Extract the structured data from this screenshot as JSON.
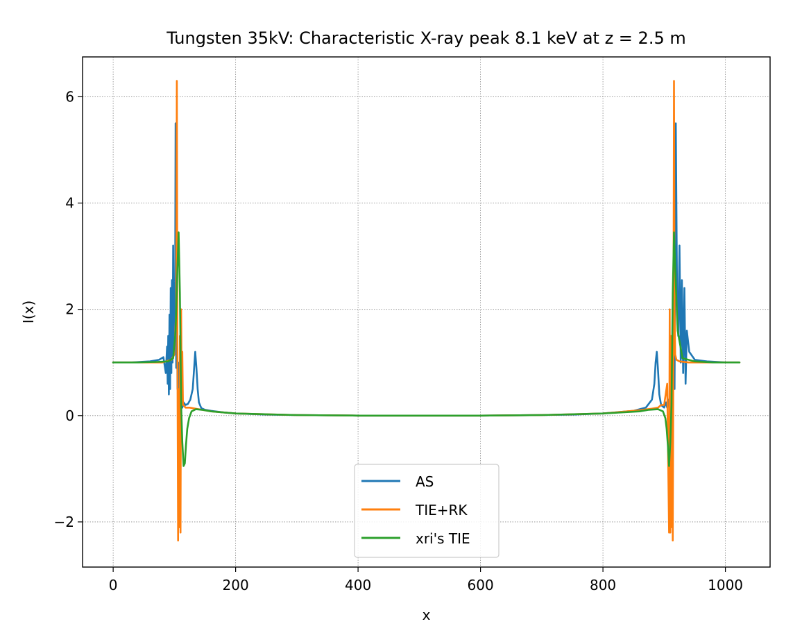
{
  "chart_data": {
    "type": "line",
    "title": "Tungsten 35kV: Characteristic X-ray peak 8.1 keV at z = 2.5 m",
    "xlabel": "x",
    "ylabel": "I(x)",
    "xlim": [
      -50,
      1073
    ],
    "ylim": [
      -2.85,
      6.75
    ],
    "xticks": [
      0,
      200,
      400,
      600,
      800,
      1000
    ],
    "yticks": [
      -2,
      0,
      2,
      4,
      6
    ],
    "xtick_labels": [
      "0",
      "200",
      "400",
      "600",
      "800",
      "1000"
    ],
    "ytick_labels": [
      "−2",
      "0",
      "2",
      "4",
      "6"
    ],
    "grid": true,
    "legend_position": "lower center",
    "series": [
      {
        "name": "AS",
        "color": "#1f77b4",
        "x": [
          0,
          30,
          60,
          75,
          82,
          86,
          88,
          89,
          90,
          91,
          92,
          93,
          94,
          95,
          96,
          97,
          98,
          99,
          100,
          101,
          102,
          103,
          104,
          105,
          106,
          107,
          108,
          109,
          110,
          111,
          112,
          113,
          115,
          118,
          122,
          126,
          130,
          132,
          134,
          136,
          138,
          140,
          144,
          150,
          160,
          180,
          200,
          250,
          300,
          400,
          500,
          600,
          700,
          750,
          800,
          850,
          870,
          880,
          884,
          886,
          888,
          890,
          892,
          895,
          900,
          903,
          905,
          907,
          909,
          911,
          913,
          915,
          917,
          919,
          921,
          923,
          925,
          927,
          929,
          931,
          933,
          935,
          937,
          941,
          950,
          970,
          1000,
          1023
        ],
        "y": [
          1.0,
          1.0,
          1.02,
          1.05,
          1.1,
          0.8,
          1.3,
          0.6,
          1.5,
          0.4,
          1.9,
          0.5,
          2.4,
          0.8,
          2.55,
          1.0,
          3.2,
          1.2,
          2.3,
          1.5,
          5.5,
          0.9,
          3.0,
          0.5,
          1.0,
          0.15,
          0.7,
          0.1,
          0.4,
          0.1,
          0.3,
          0.15,
          0.25,
          0.2,
          0.22,
          0.3,
          0.5,
          0.85,
          1.2,
          0.9,
          0.5,
          0.25,
          0.14,
          0.11,
          0.09,
          0.06,
          0.04,
          0.02,
          0.01,
          0.0,
          0.0,
          0.0,
          0.01,
          0.02,
          0.04,
          0.09,
          0.15,
          0.3,
          0.6,
          1.0,
          1.2,
          0.85,
          0.4,
          0.2,
          0.15,
          0.25,
          0.15,
          0.3,
          0.1,
          0.5,
          0.2,
          1.1,
          0.5,
          5.5,
          2.3,
          1.5,
          3.2,
          1.0,
          2.55,
          0.8,
          2.4,
          0.6,
          1.6,
          1.2,
          1.05,
          1.02,
          1.0,
          1.0
        ]
      },
      {
        "name": "TIE+RK",
        "color": "#ff7f0e",
        "x": [
          0,
          40,
          80,
          95,
          100,
          103,
          104,
          105,
          106,
          107,
          108,
          109,
          110,
          111,
          112,
          113,
          114,
          115,
          118,
          125,
          140,
          160,
          200,
          300,
          400,
          500,
          600,
          700,
          800,
          860,
          880,
          890,
          895,
          900,
          905,
          908,
          909,
          910,
          911,
          912,
          913,
          914,
          915,
          916,
          917,
          918,
          919,
          920,
          925,
          940,
          980,
          1023
        ],
        "y": [
          1.0,
          1.0,
          1.0,
          1.05,
          1.15,
          2.0,
          6.3,
          1.0,
          -2.35,
          0.5,
          -2.1,
          1.5,
          -2.2,
          2.0,
          0.3,
          1.2,
          0.2,
          0.2,
          0.15,
          0.15,
          0.12,
          0.08,
          0.04,
          0.01,
          0.0,
          0.0,
          0.0,
          0.01,
          0.04,
          0.1,
          0.13,
          0.15,
          0.2,
          0.2,
          0.6,
          -2.2,
          2.0,
          -2.2,
          1.5,
          -2.1,
          0.5,
          -2.35,
          1.0,
          6.3,
          2.0,
          1.15,
          1.1,
          1.05,
          1.02,
          1.0,
          1.0,
          1.0
        ]
      },
      {
        "name": "xri's TIE",
        "color": "#2ca02c",
        "x": [
          0,
          40,
          70,
          90,
          98,
          102,
          105,
          107,
          109,
          111,
          113,
          115,
          117,
          119,
          121,
          124,
          128,
          135,
          145,
          160,
          200,
          300,
          400,
          500,
          600,
          700,
          800,
          860,
          875,
          890,
          898,
          902,
          904,
          906,
          908,
          910,
          912,
          914,
          916,
          918,
          922,
          930,
          950,
          980,
          1023
        ],
        "y": [
          1.0,
          1.0,
          1.01,
          1.02,
          1.08,
          1.6,
          2.8,
          3.45,
          2.3,
          0.2,
          -0.5,
          -0.95,
          -0.9,
          -0.55,
          -0.25,
          -0.05,
          0.08,
          0.12,
          0.11,
          0.08,
          0.04,
          0.01,
          0.0,
          0.0,
          0.0,
          0.01,
          0.04,
          0.08,
          0.11,
          0.12,
          0.08,
          -0.05,
          -0.25,
          -0.55,
          -0.95,
          -0.5,
          0.2,
          2.3,
          3.45,
          2.8,
          1.6,
          1.08,
          1.02,
          1.0,
          1.0
        ]
      }
    ]
  }
}
